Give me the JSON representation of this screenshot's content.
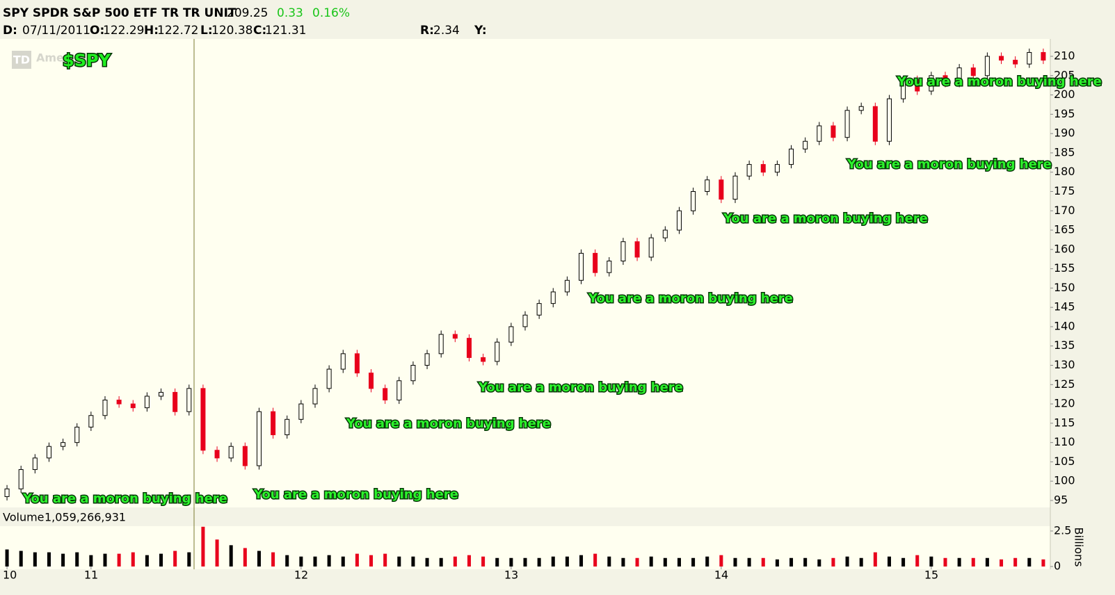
{
  "header": {
    "symbol": "SPY SPDR S&P 500 ETF TR TR UNIT",
    "last": "209.25",
    "change": "0.33",
    "change_pct": "0.16%",
    "date_label": "D:",
    "date": "07/11/2011",
    "open_label": "O:",
    "open": "122.29",
    "high_label": "H:",
    "high": "122.72",
    "low_label": "L:",
    "low": "120.38",
    "close_label": "C:",
    "close": "121.31",
    "r_label": "R:",
    "r": "2.34",
    "y_label": "Y:"
  },
  "logo": "Ame",
  "logo_badge": "TD",
  "chart_data": {
    "type": "candlestick",
    "symbol_label": "$SPY",
    "annotations": [
      "You are a moron buying here",
      "You are a moron buying here",
      "You are a moron buying here",
      "You are a moron buying here",
      "You are a moron buying here",
      "You are a moron buying here",
      "You are a moron buying here",
      "You are a moron buying here"
    ],
    "categories": [
      "10",
      null,
      null,
      null,
      null,
      null,
      "11",
      null,
      null,
      null,
      null,
      null,
      null,
      null,
      null,
      null,
      null,
      null,
      null,
      null,
      null,
      "12",
      null,
      null,
      null,
      null,
      null,
      null,
      null,
      null,
      null,
      null,
      null,
      null,
      null,
      null,
      "13",
      null,
      null,
      null,
      null,
      null,
      null,
      null,
      null,
      null,
      null,
      null,
      null,
      null,
      null,
      "14",
      null,
      null,
      null,
      null,
      null,
      null,
      null,
      null,
      null,
      null,
      null,
      null,
      null,
      null,
      "15",
      null,
      null,
      null,
      null,
      null,
      null,
      null,
      null
    ],
    "open": [
      96,
      98,
      103,
      106,
      109,
      110,
      114,
      117,
      121,
      120,
      119,
      122,
      123,
      118,
      124,
      108,
      106,
      109,
      104,
      118,
      112,
      116,
      120,
      124,
      129,
      133,
      128,
      124,
      121,
      126,
      130,
      133,
      138,
      137,
      132,
      131,
      136,
      140,
      143,
      146,
      149,
      152,
      159,
      154,
      157,
      162,
      158,
      163,
      165,
      170,
      175,
      178,
      173,
      179,
      182,
      180,
      182,
      186,
      188,
      192,
      189,
      196,
      197,
      188,
      199,
      204,
      201,
      205,
      203,
      207,
      205,
      210,
      209,
      208,
      211
    ],
    "high": [
      99,
      104,
      107,
      110,
      111,
      115,
      118,
      122,
      122,
      121,
      123,
      124,
      124,
      125,
      125,
      109,
      110,
      110,
      119,
      119,
      117,
      121,
      125,
      130,
      134,
      134,
      129,
      125,
      127,
      131,
      134,
      139,
      139,
      138,
      133,
      137,
      141,
      144,
      147,
      150,
      153,
      160,
      160,
      158,
      163,
      163,
      164,
      166,
      171,
      176,
      179,
      179,
      180,
      183,
      183,
      183,
      187,
      189,
      193,
      193,
      197,
      198,
      198,
      200,
      205,
      205,
      206,
      206,
      208,
      208,
      211,
      211,
      210,
      212,
      212
    ],
    "low": [
      95,
      97,
      102,
      105,
      108,
      109,
      113,
      116,
      119,
      118,
      118,
      121,
      117,
      117,
      107,
      105,
      105,
      103,
      103,
      111,
      111,
      115,
      119,
      123,
      128,
      127,
      123,
      120,
      120,
      125,
      129,
      132,
      136,
      131,
      130,
      130,
      135,
      139,
      142,
      145,
      148,
      151,
      153,
      153,
      156,
      157,
      157,
      162,
      164,
      169,
      174,
      172,
      172,
      178,
      179,
      179,
      181,
      185,
      187,
      188,
      188,
      195,
      187,
      187,
      198,
      200,
      200,
      202,
      202,
      204,
      204,
      208,
      207,
      207,
      208
    ],
    "close": [
      98,
      103,
      106,
      109,
      110,
      114,
      117,
      121,
      120,
      119,
      122,
      123,
      118,
      124,
      108,
      106,
      109,
      104,
      118,
      112,
      116,
      120,
      124,
      129,
      133,
      128,
      124,
      121,
      126,
      130,
      133,
      138,
      137,
      132,
      131,
      136,
      140,
      143,
      146,
      149,
      152,
      159,
      154,
      157,
      162,
      158,
      163,
      165,
      170,
      175,
      178,
      173,
      179,
      182,
      180,
      182,
      186,
      188,
      192,
      189,
      196,
      197,
      188,
      199,
      204,
      201,
      205,
      203,
      207,
      205,
      210,
      209,
      208,
      211,
      209
    ],
    "up_color": "#000000",
    "down_color": "#e8001c",
    "ylim": [
      93.2,
      214.5
    ],
    "yticks": [
      95,
      100,
      105,
      110,
      115,
      120,
      125,
      130,
      135,
      140,
      145,
      150,
      155,
      160,
      165,
      170,
      175,
      180,
      185,
      190,
      195,
      200,
      205,
      210
    ],
    "volume_label": "Volume",
    "volume_value": "1,059,266,931",
    "volume_unit": "Billions",
    "volume": [
      1.2,
      1.1,
      1.0,
      1.0,
      0.9,
      1.0,
      0.8,
      0.9,
      0.9,
      1.0,
      0.8,
      0.9,
      1.1,
      1.0,
      2.8,
      1.9,
      1.5,
      1.3,
      1.1,
      1.0,
      0.8,
      0.7,
      0.7,
      0.8,
      0.7,
      0.9,
      0.8,
      0.9,
      0.7,
      0.7,
      0.6,
      0.6,
      0.7,
      0.8,
      0.7,
      0.6,
      0.6,
      0.6,
      0.6,
      0.7,
      0.7,
      0.8,
      0.9,
      0.7,
      0.6,
      0.6,
      0.7,
      0.6,
      0.6,
      0.6,
      0.7,
      0.8,
      0.6,
      0.6,
      0.6,
      0.5,
      0.6,
      0.6,
      0.5,
      0.6,
      0.7,
      0.6,
      1.0,
      0.7,
      0.6,
      0.8,
      0.7,
      0.6,
      0.6,
      0.6,
      0.6,
      0.5,
      0.6,
      0.6,
      0.5
    ],
    "volume_ylim": [
      0,
      2.84
    ],
    "volume_yticks": [
      0,
      2.5
    ]
  }
}
